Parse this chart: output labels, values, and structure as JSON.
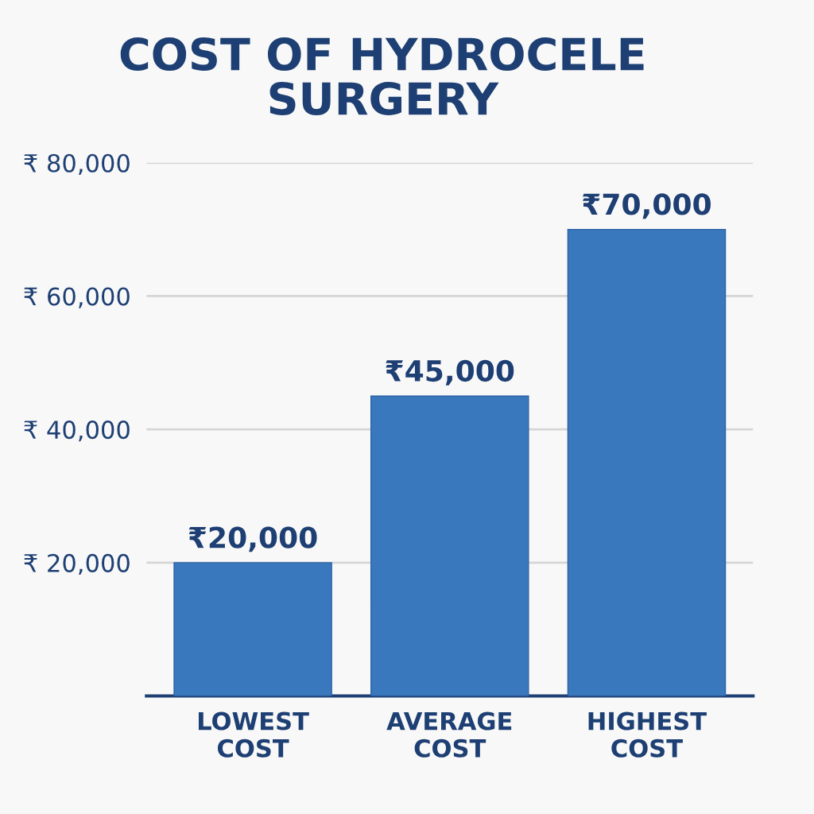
{
  "chart_data": {
    "type": "bar",
    "title": "COST OF HYDROCELE\nSURGERY",
    "categories": [
      "LOWEST\nCOST",
      "AVERAGE\nCOST",
      "HIGHEST\nCOST"
    ],
    "values": [
      20000,
      45000,
      70000
    ],
    "color": "#3a78bd",
    "value_labels": [
      "₹20,000",
      "₹45,000",
      "₹70,000"
    ],
    "ylim": [
      0,
      80000
    ],
    "yticks": [
      {
        "value": 20000,
        "label": "₹ 20,000"
      },
      {
        "value": 40000,
        "label": "₹ 40,000"
      },
      {
        "value": 60000,
        "label": "₹ 60,000"
      },
      {
        "value": 80000,
        "label": "₹ 80,000"
      }
    ],
    "grid": "y",
    "legend": false
  }
}
